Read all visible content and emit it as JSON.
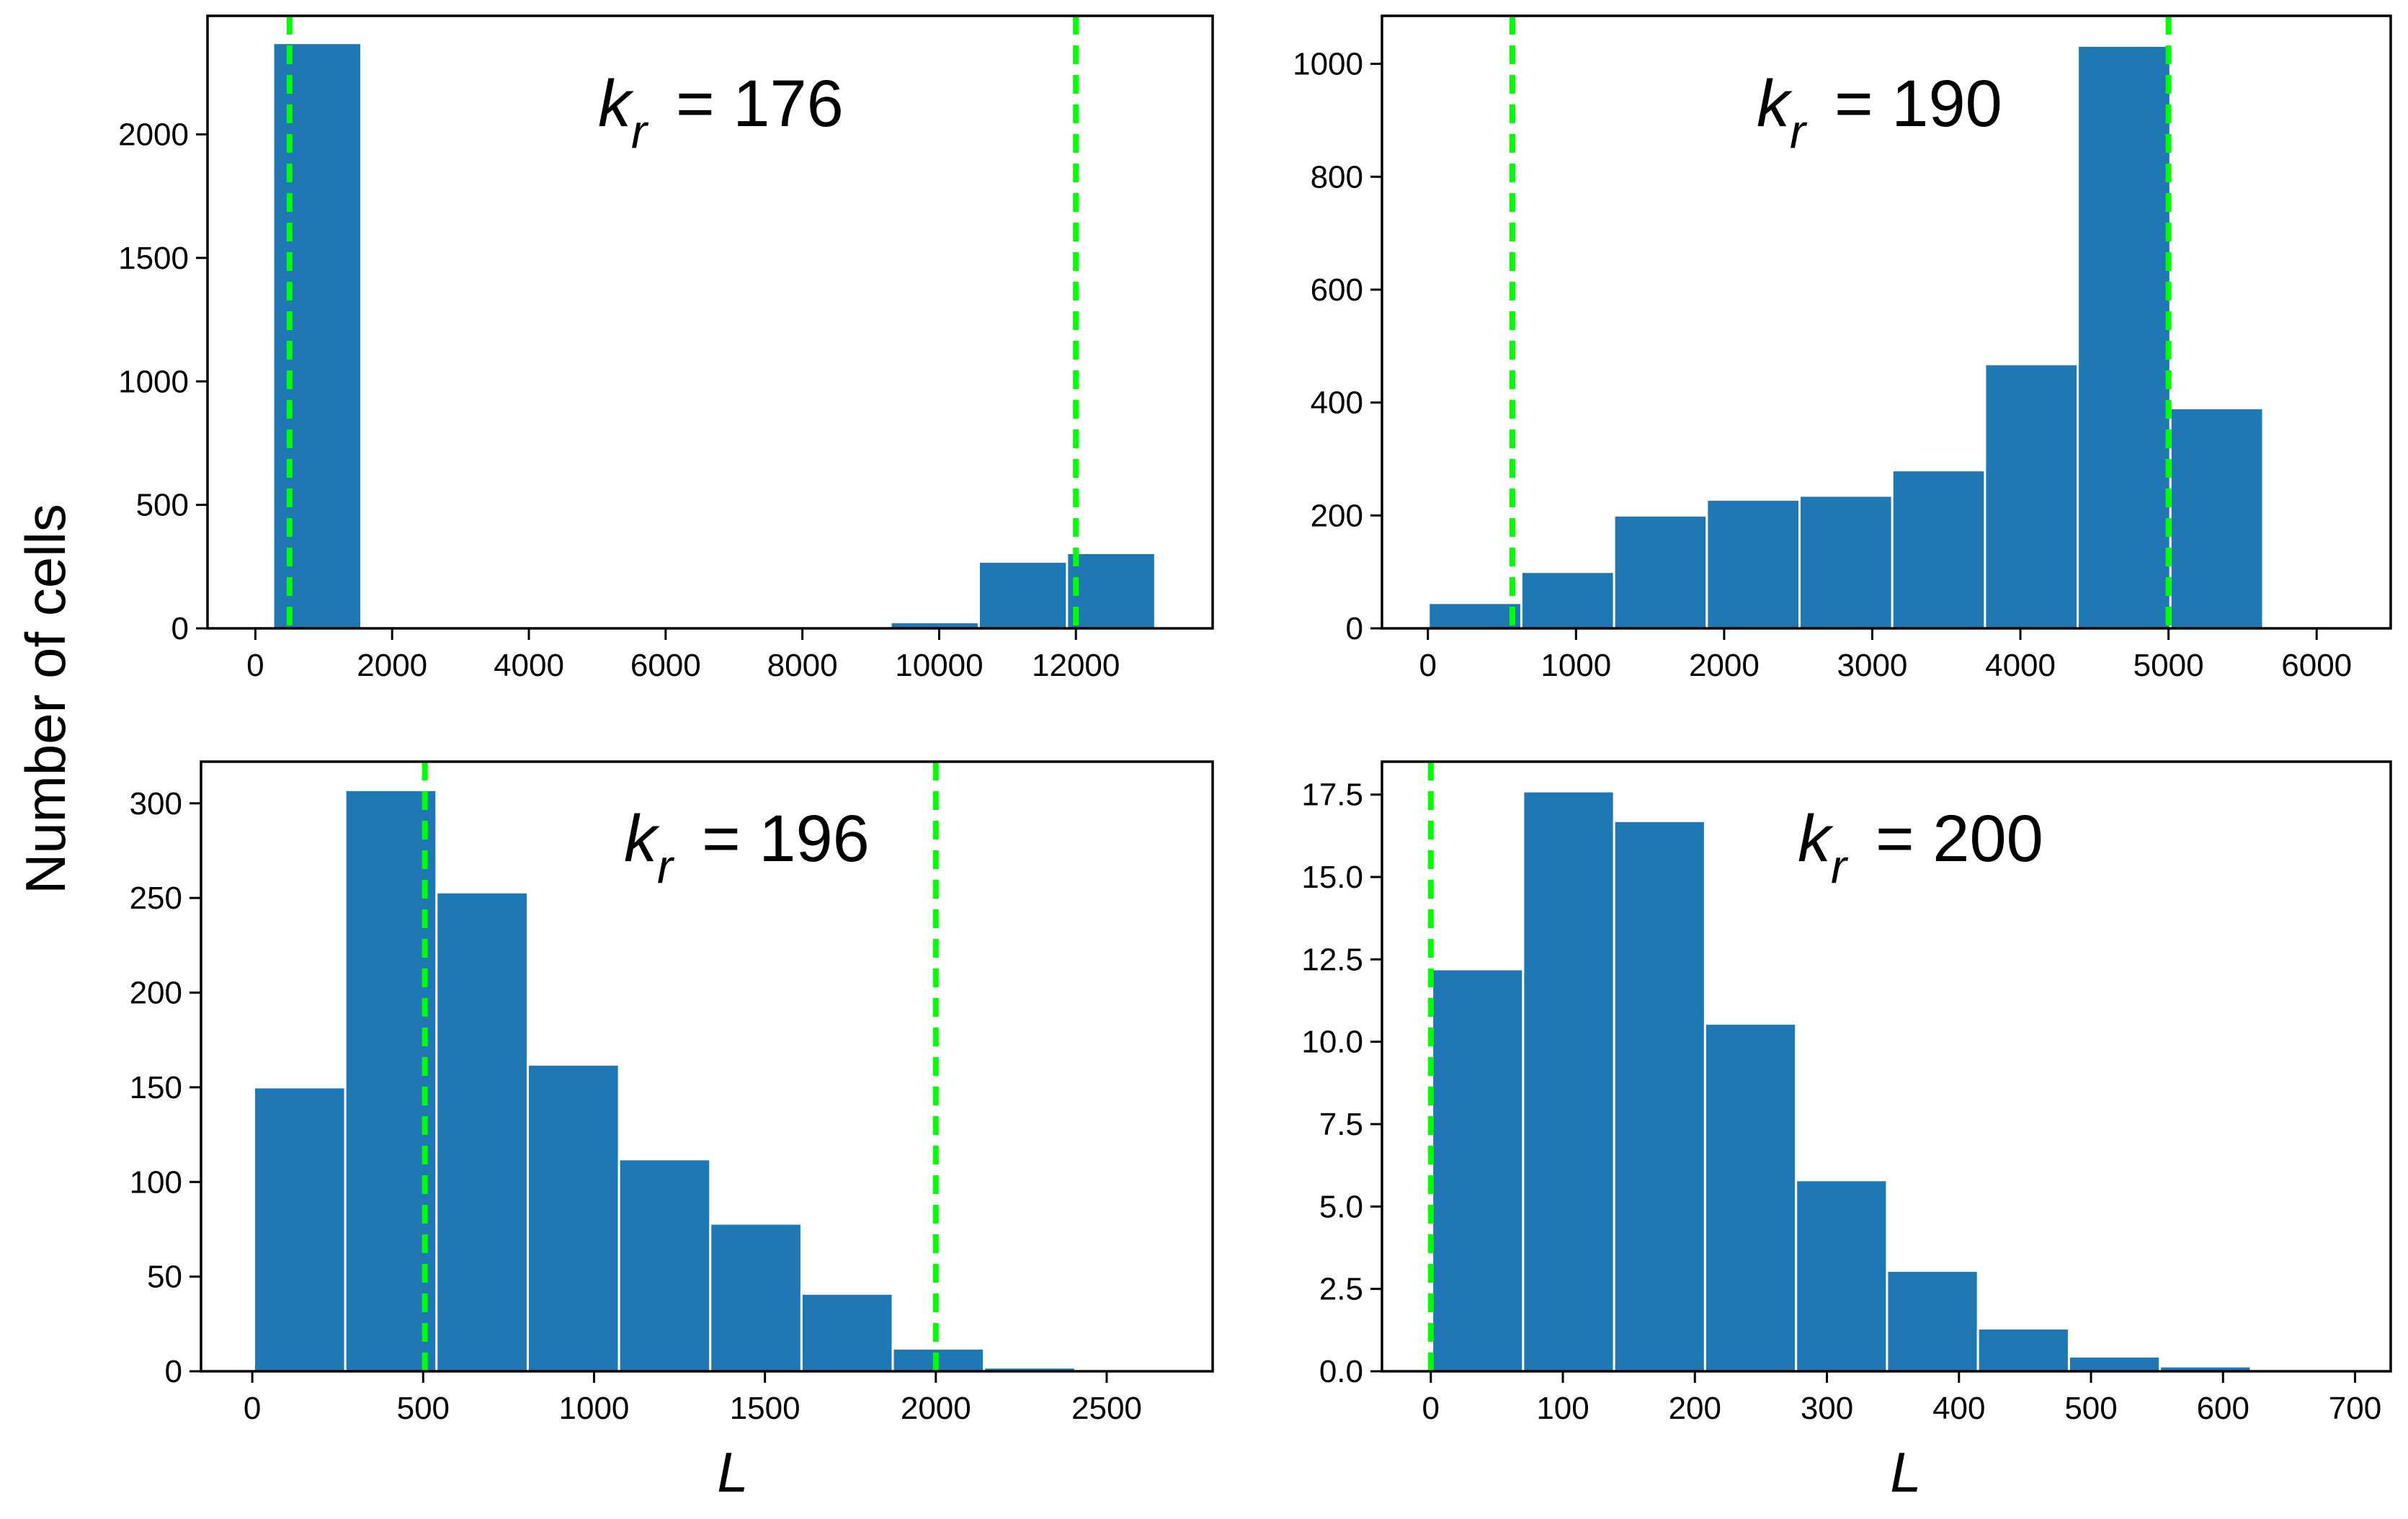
{
  "figure": {
    "ylabel": "Number of cells",
    "xlabel": "L"
  },
  "colors": {
    "bar": "#1f77b4",
    "bar_edge": "#ffffff",
    "threshold": "#00ff00",
    "axis": "#000000"
  },
  "chart_data": [
    {
      "type": "bar",
      "title": "",
      "annotation": {
        "symbol": "k",
        "subscript": "r",
        "text": "= 176"
      },
      "xlabel": "",
      "xlim": [
        -700,
        14000
      ],
      "ylim": [
        0,
        2480
      ],
      "xticks": [
        0,
        2000,
        4000,
        6000,
        8000,
        10000,
        12000
      ],
      "yticks": [
        0,
        500,
        1000,
        1500,
        2000
      ],
      "bin_edges": [
        260,
        1550,
        2840,
        4130,
        5420,
        6710,
        8000,
        9290,
        10580,
        11870,
        13160
      ],
      "values": [
        2370,
        0,
        0,
        0,
        0,
        0,
        0,
        25,
        270,
        305
      ],
      "thresholds": [
        500,
        12000
      ]
    },
    {
      "type": "bar",
      "title": "",
      "annotation": {
        "symbol": "k",
        "subscript": "r",
        "text": "= 190"
      },
      "xlabel": "",
      "xlim": [
        -310,
        6500
      ],
      "ylim": [
        0,
        1085
      ],
      "xticks": [
        0,
        1000,
        2000,
        3000,
        4000,
        5000,
        6000
      ],
      "yticks": [
        0,
        200,
        400,
        600,
        800,
        1000
      ],
      "bin_edges": [
        5,
        631,
        1257,
        1883,
        2509,
        3135,
        3761,
        4387,
        5013,
        5639,
        6265
      ],
      "values": [
        45,
        100,
        200,
        228,
        235,
        280,
        468,
        1032,
        390,
        3
      ],
      "thresholds": [
        570,
        5000
      ]
    },
    {
      "type": "bar",
      "title": "",
      "annotation": {
        "symbol": "k",
        "subscript": "r",
        "text": "= 196"
      },
      "xlabel": "L",
      "xlim": [
        -150,
        2810
      ],
      "ylim": [
        0,
        322
      ],
      "xticks": [
        0,
        500,
        1000,
        1500,
        2000,
        2500
      ],
      "yticks": [
        0,
        50,
        100,
        150,
        200,
        250,
        300
      ],
      "bin_edges": [
        5,
        272,
        539,
        806,
        1073,
        1340,
        1607,
        1874,
        2141,
        2408,
        2675
      ],
      "values": [
        150,
        307,
        253,
        162,
        112,
        78,
        41,
        12,
        2,
        0
      ],
      "thresholds": [
        505,
        2000
      ]
    },
    {
      "type": "bar",
      "title": "",
      "annotation": {
        "symbol": "k",
        "subscript": "r",
        "text": "= 200"
      },
      "xlabel": "L",
      "xlim": [
        -37,
        727
      ],
      "ylim": [
        0,
        18.5
      ],
      "xticks": [
        0,
        100,
        200,
        300,
        400,
        500,
        600,
        700
      ],
      "yticks": [
        0.0,
        2.5,
        5.0,
        7.5,
        10.0,
        12.5,
        15.0,
        17.5
      ],
      "ytick_labels": [
        "0.0",
        "2.5",
        "5.0",
        "7.5",
        "10.0",
        "12.5",
        "15.0",
        "17.5"
      ],
      "bin_edges": [
        1,
        69.9,
        138.8,
        207.7,
        276.6,
        345.5,
        414.4,
        483.3,
        552.2,
        621.1,
        690
      ],
      "values": [
        12.2,
        17.6,
        16.7,
        10.55,
        5.8,
        3.05,
        1.3,
        0.45,
        0.15,
        0.0
      ],
      "thresholds": [
        0
      ]
    }
  ]
}
